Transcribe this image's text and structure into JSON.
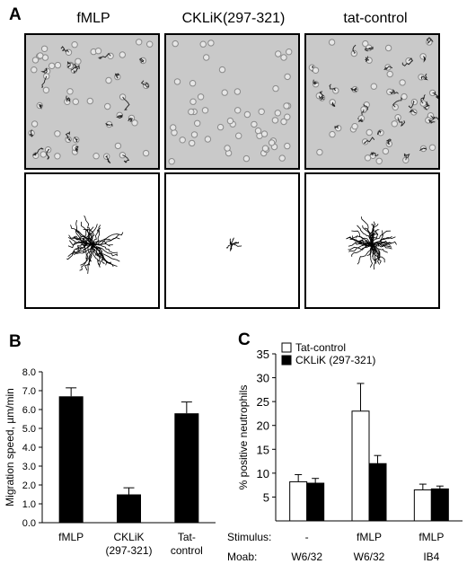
{
  "panel_a": {
    "letter": "A",
    "columns": [
      {
        "title": "fMLP",
        "spread": 1.0
      },
      {
        "title": "CKLiK(297-321)",
        "spread": 0.25
      },
      {
        "title": "tat-control",
        "spread": 0.85
      }
    ]
  },
  "chart_data": [
    {
      "panel": "B",
      "type": "bar",
      "ylabel": "Migration speed, µm/min",
      "ylim": [
        0.0,
        8.0
      ],
      "yticks": [
        "0.0",
        "1.0",
        "2.0",
        "3.0",
        "4.0",
        "5.0",
        "6.0",
        "7.0",
        "8.0"
      ],
      "categories": [
        [
          "fMLP"
        ],
        [
          "CKLiK",
          "(297-321)"
        ],
        [
          "Tat-",
          "control"
        ]
      ],
      "values": [
        6.7,
        1.5,
        5.8
      ],
      "errors": [
        0.45,
        0.35,
        0.6
      ],
      "bar_color": "#000000"
    },
    {
      "panel": "C",
      "type": "bar",
      "ylabel": "% positive neutrophils",
      "ylim": [
        0,
        35
      ],
      "yticks": [
        "5",
        "10",
        "15",
        "20",
        "25",
        "30",
        "35"
      ],
      "series": [
        {
          "name": "Tat-control",
          "values": [
            8.2,
            23.0,
            6.5
          ],
          "errors": [
            1.5,
            5.8,
            1.2
          ],
          "color": "#ffffff"
        },
        {
          "name": "CKLiK (297-321)",
          "values": [
            7.9,
            12.0,
            6.7
          ],
          "errors": [
            1.0,
            1.7,
            0.6
          ],
          "color": "#000000"
        }
      ],
      "legend_position": "top-left",
      "row_labels": [
        "Stimulus:",
        "Moab:"
      ],
      "stimulus": [
        "-",
        "fMLP",
        "fMLP"
      ],
      "moab": [
        "W6/32",
        "W6/32",
        "IB4"
      ]
    }
  ]
}
